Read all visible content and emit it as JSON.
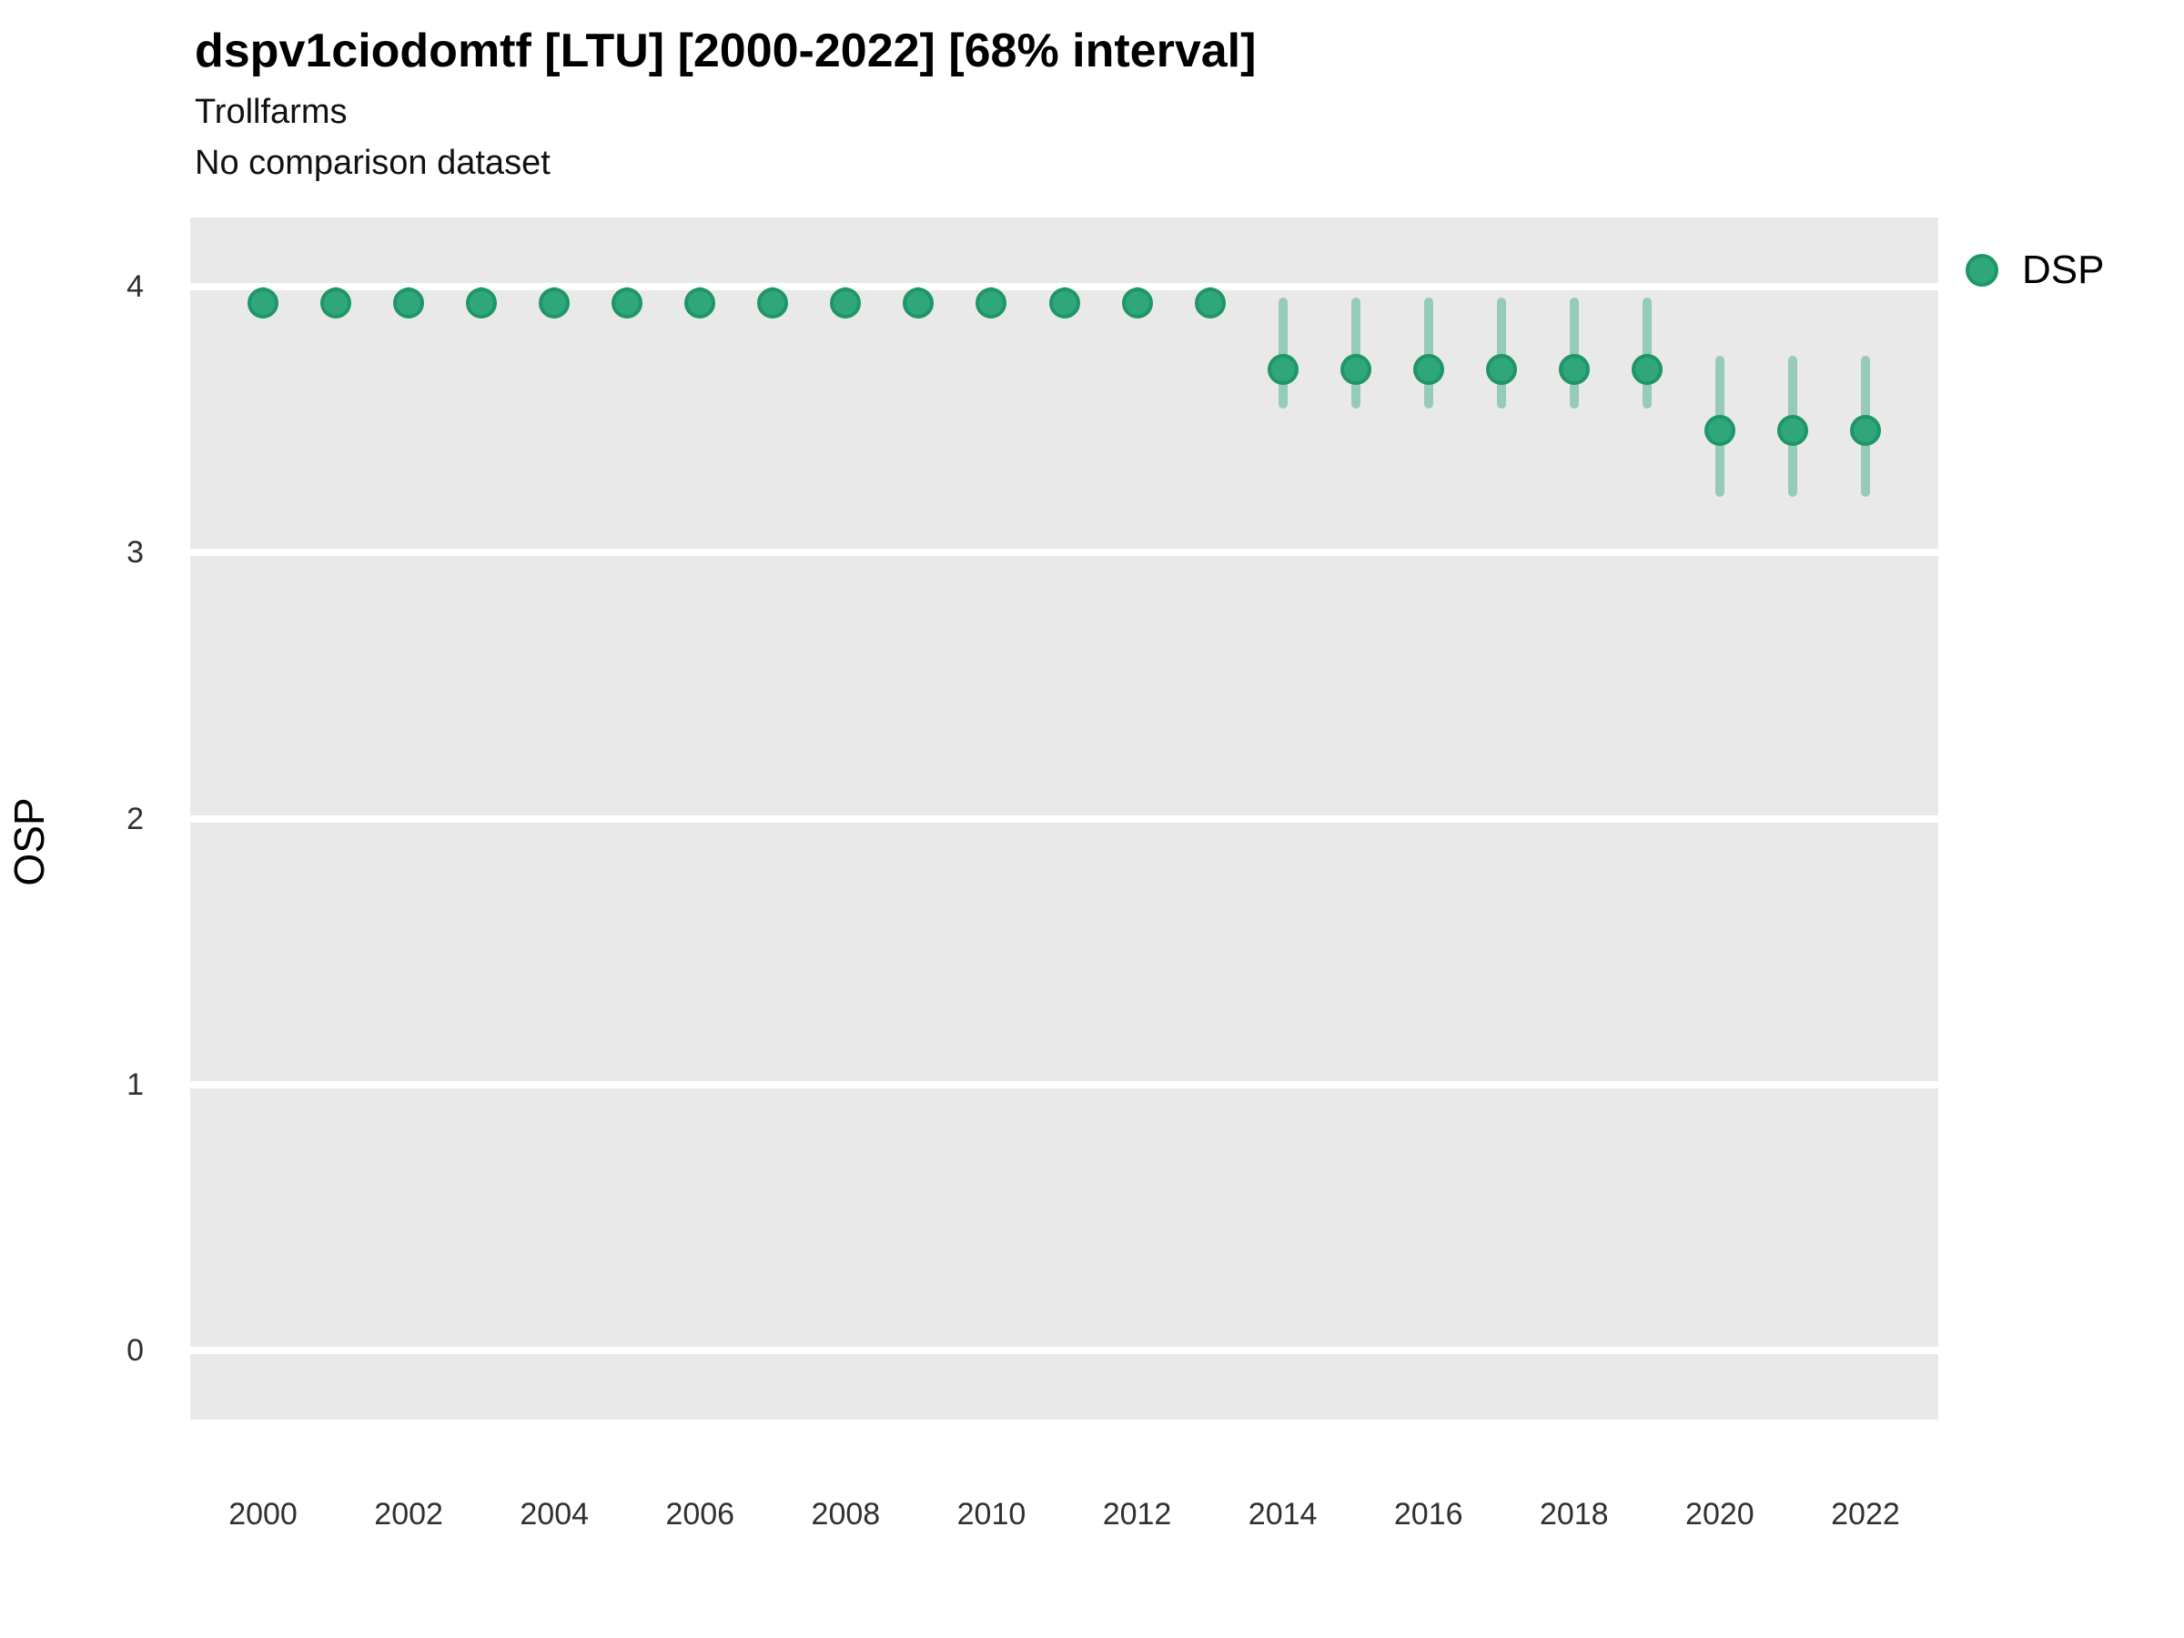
{
  "header": {
    "title": "dspv1ciodomtf [LTU] [2000-2022] [68% interval]",
    "subtitle": "Trollfarms",
    "comparison_note": "No comparison dataset"
  },
  "axes": {
    "y_label": "OSP"
  },
  "legend": {
    "items": [
      {
        "label": "DSP",
        "marker": "circle-icon",
        "color": "#2fa77b"
      }
    ],
    "position": "right"
  },
  "colors": {
    "panel_background": "#e9e9e9",
    "gridline": "#ffffff",
    "point_fill": "#2fa77b",
    "point_stroke": "#1e9667",
    "error_bar": "rgba(47,167,123,0.45)",
    "tick_text": "#303030",
    "text": "#000000"
  },
  "chart_data": {
    "type": "scatter",
    "title": "dspv1ciodomtf [LTU] [2000-2022] [68% interval]",
    "subtitle": "Trollfarms",
    "note": "No comparison dataset",
    "xlabel": "",
    "ylabel": "OSP",
    "interval": "68%",
    "legend_position": "right",
    "grid": "major-horizontal",
    "xlim": [
      1999,
      2023
    ],
    "ylim": [
      -0.26,
      4.26
    ],
    "x_ticks": [
      2000,
      2002,
      2004,
      2006,
      2008,
      2010,
      2012,
      2014,
      2016,
      2018,
      2020,
      2022
    ],
    "y_ticks": [
      0,
      1,
      2,
      3,
      4
    ],
    "series": [
      {
        "name": "DSP",
        "points": [
          {
            "year": 2000,
            "value": 3.94,
            "lo": 3.89,
            "hi": 4.0
          },
          {
            "year": 2001,
            "value": 3.94,
            "lo": 3.89,
            "hi": 4.0
          },
          {
            "year": 2002,
            "value": 3.94,
            "lo": 3.89,
            "hi": 4.0
          },
          {
            "year": 2003,
            "value": 3.94,
            "lo": 3.89,
            "hi": 4.0
          },
          {
            "year": 2004,
            "value": 3.94,
            "lo": 3.89,
            "hi": 4.0
          },
          {
            "year": 2005,
            "value": 3.94,
            "lo": 3.89,
            "hi": 4.0
          },
          {
            "year": 2006,
            "value": 3.94,
            "lo": 3.89,
            "hi": 4.0
          },
          {
            "year": 2007,
            "value": 3.94,
            "lo": 3.89,
            "hi": 4.0
          },
          {
            "year": 2008,
            "value": 3.94,
            "lo": 3.89,
            "hi": 4.0
          },
          {
            "year": 2009,
            "value": 3.94,
            "lo": 3.89,
            "hi": 4.0
          },
          {
            "year": 2010,
            "value": 3.94,
            "lo": 3.89,
            "hi": 4.0
          },
          {
            "year": 2011,
            "value": 3.94,
            "lo": 3.89,
            "hi": 4.0
          },
          {
            "year": 2012,
            "value": 3.94,
            "lo": 3.89,
            "hi": 4.0
          },
          {
            "year": 2013,
            "value": 3.94,
            "lo": 3.89,
            "hi": 4.0
          },
          {
            "year": 2014,
            "value": 3.69,
            "lo": 3.54,
            "hi": 3.96
          },
          {
            "year": 2015,
            "value": 3.69,
            "lo": 3.54,
            "hi": 3.96
          },
          {
            "year": 2016,
            "value": 3.69,
            "lo": 3.54,
            "hi": 3.96
          },
          {
            "year": 2017,
            "value": 3.69,
            "lo": 3.54,
            "hi": 3.96
          },
          {
            "year": 2018,
            "value": 3.69,
            "lo": 3.54,
            "hi": 3.96
          },
          {
            "year": 2019,
            "value": 3.69,
            "lo": 3.54,
            "hi": 3.96
          },
          {
            "year": 2020,
            "value": 3.46,
            "lo": 3.21,
            "hi": 3.74
          },
          {
            "year": 2021,
            "value": 3.46,
            "lo": 3.21,
            "hi": 3.74
          },
          {
            "year": 2022,
            "value": 3.46,
            "lo": 3.21,
            "hi": 3.74
          }
        ]
      }
    ]
  }
}
